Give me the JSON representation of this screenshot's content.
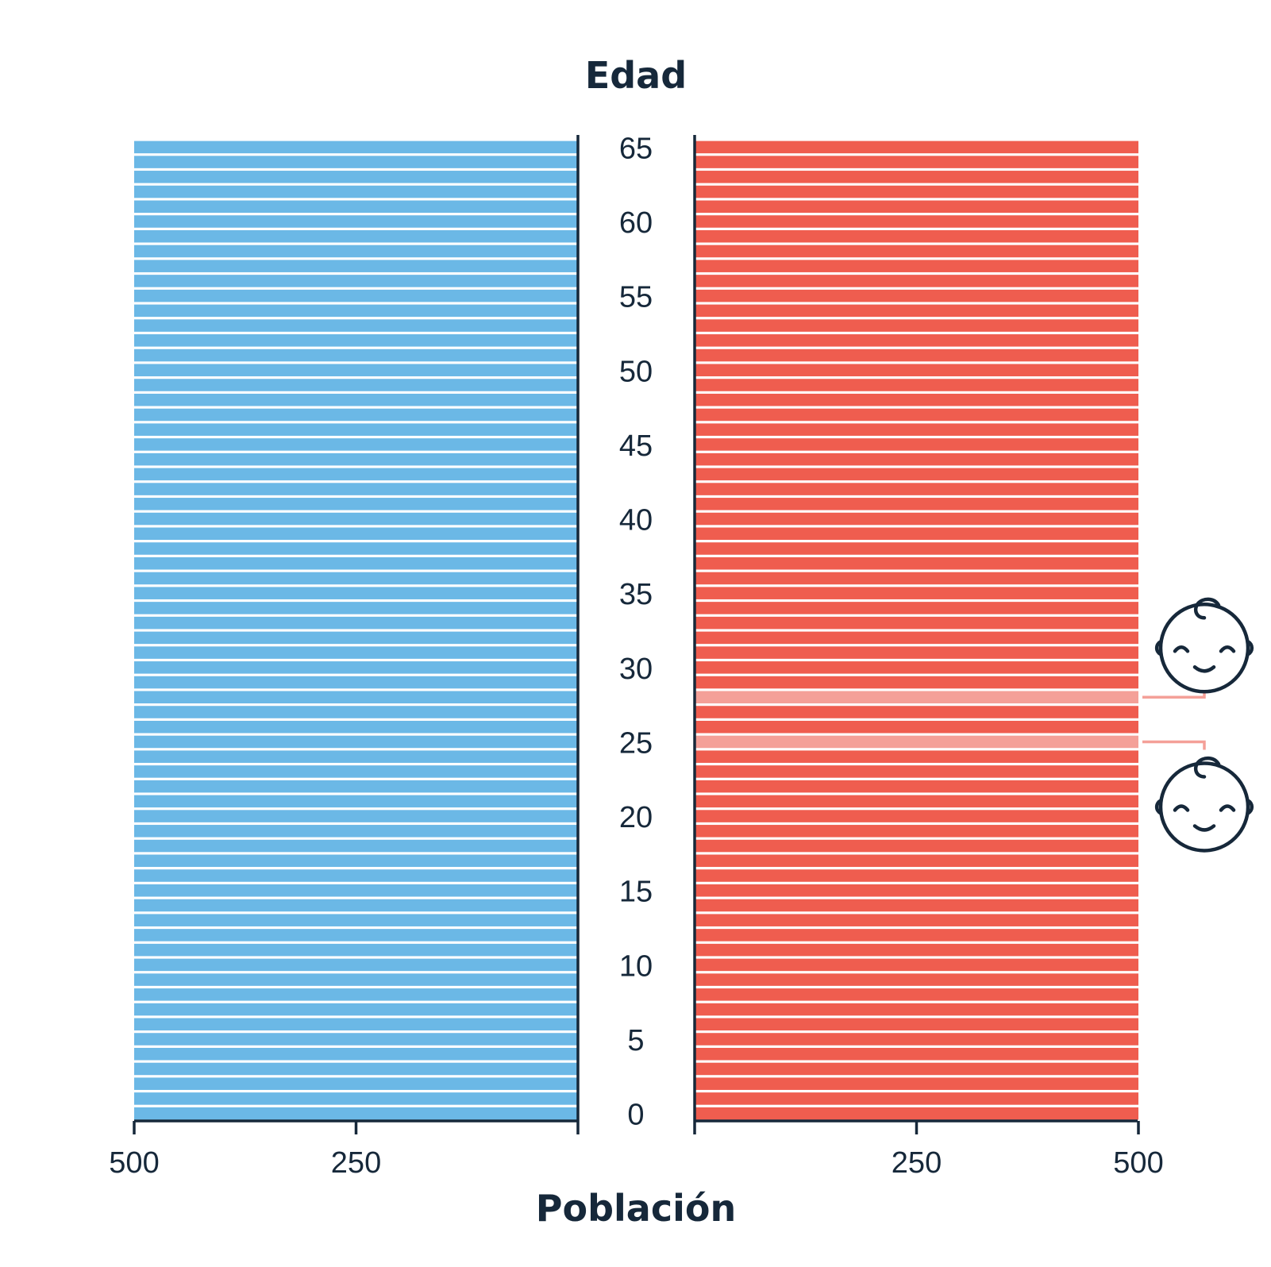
{
  "chart_data": {
    "type": "bar",
    "ylabel": "Edad",
    "xlabel": "Población",
    "age_range": [
      0,
      65
    ],
    "age_ticks": [
      0,
      5,
      10,
      15,
      20,
      25,
      30,
      35,
      40,
      45,
      50,
      55,
      60,
      65
    ],
    "population_ticks_left": [
      "500",
      "250"
    ],
    "population_ticks_right": [
      "250",
      "500"
    ],
    "xlim": [
      0,
      500
    ],
    "highlighted_ages": [
      25,
      28
    ],
    "series": [
      {
        "name": "",
        "side": "left",
        "color": "#6bb8e6",
        "value_per_age": 500
      },
      {
        "name": "",
        "side": "right",
        "color": "#ef5d4f",
        "highlight_color": "#f4a098",
        "value_per_age": 500
      }
    ],
    "annotations": [
      {
        "type": "baby-icon",
        "age": 28
      },
      {
        "type": "baby-icon",
        "age": 25
      }
    ]
  },
  "colors": {
    "axis": "#16283a",
    "connector": "#f4a098"
  }
}
